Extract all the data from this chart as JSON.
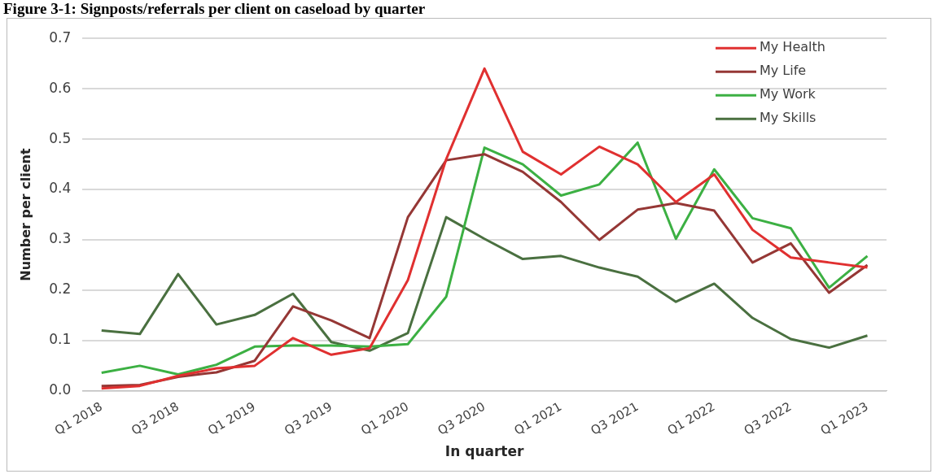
{
  "chart_data": {
    "type": "line",
    "title": "Figure 3-1: Signposts/referrals per client on caseload by quarter",
    "xlabel": "In quarter",
    "ylabel": "Number per client",
    "categories": [
      "Q1 2018",
      null,
      "Q3 2018",
      null,
      "Q1 2019",
      null,
      "Q3 2019",
      null,
      "Q1 2020",
      null,
      "Q3 2020",
      null,
      "Q1 2021",
      null,
      "Q3 2021",
      null,
      "Q1 2022",
      null,
      "Q3 2022",
      null,
      "Q1 2023"
    ],
    "series": [
      {
        "name": "My Health",
        "color": "#e03030",
        "values": [
          0.005,
          0.01,
          0.03,
          0.045,
          0.05,
          0.105,
          0.072,
          0.085,
          0.22,
          0.46,
          0.64,
          0.475,
          0.43,
          0.485,
          0.45,
          0.375,
          0.43,
          0.32,
          0.265,
          0.255,
          0.245
        ]
      },
      {
        "name": "My Life",
        "color": "#953735",
        "values": [
          0.01,
          0.012,
          0.028,
          0.037,
          0.06,
          0.168,
          0.14,
          0.105,
          0.345,
          0.458,
          0.47,
          0.435,
          0.375,
          0.3,
          0.36,
          0.373,
          0.358,
          0.255,
          0.293,
          0.195,
          0.25
        ]
      },
      {
        "name": "My Work",
        "color": "#3cb043",
        "values": [
          0.036,
          0.05,
          0.033,
          0.052,
          0.088,
          0.09,
          0.09,
          0.088,
          0.093,
          0.187,
          0.483,
          0.45,
          0.388,
          0.41,
          0.493,
          0.302,
          0.44,
          0.343,
          0.323,
          0.205,
          0.268
        ]
      },
      {
        "name": "My Skills",
        "color": "#4a7040",
        "values": [
          0.12,
          0.113,
          0.232,
          0.132,
          0.151,
          0.193,
          0.097,
          0.08,
          0.115,
          0.345,
          0.302,
          0.262,
          0.268,
          0.245,
          0.227,
          0.177,
          0.213,
          0.145,
          0.103,
          0.086,
          0.11
        ]
      }
    ],
    "ylim": [
      0,
      0.7
    ],
    "yticks": [
      {
        "value": 0,
        "label": "0.0"
      },
      0.1,
      0.2,
      0.3,
      0.4,
      0.5,
      0.6,
      0.7
    ],
    "grid": "y",
    "legend": "top right",
    "marker": "none",
    "line_style": "solid"
  }
}
